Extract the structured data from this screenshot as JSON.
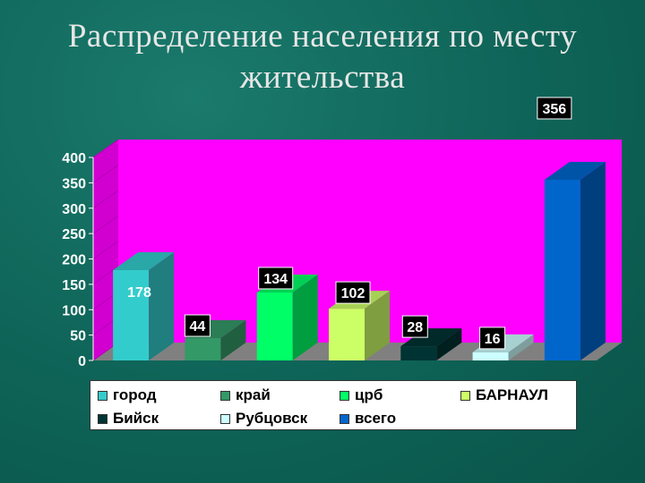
{
  "title": {
    "line1": "Распределение населения по месту",
    "line2": "жительства"
  },
  "chart_data": {
    "type": "bar",
    "categories": [
      "город",
      "край",
      "црб",
      "БАРНАУЛ",
      "Бийск",
      "Рубцовск",
      "всего"
    ],
    "values": [
      178,
      44,
      134,
      102,
      28,
      16,
      356
    ],
    "data_labels": [
      "178",
      "44",
      "134",
      "102",
      "28",
      "16",
      "356"
    ],
    "ylim": [
      0,
      400
    ],
    "yticks": [
      "0",
      "50",
      "100",
      "150",
      "200",
      "250",
      "300",
      "350",
      "400"
    ],
    "grid": false,
    "legend_position": "bottom",
    "three_d": true,
    "colors": {
      "wall": "#ff00ff",
      "floor": "#808080",
      "series": [
        "#33cccc",
        "#339966",
        "#00ff66",
        "#ccff66",
        "#003333",
        "#ccffff",
        "#0066cc"
      ]
    }
  },
  "legend": {
    "items": [
      {
        "label": "город"
      },
      {
        "label": "край"
      },
      {
        "label": "црб"
      },
      {
        "label": "БАРНАУЛ"
      },
      {
        "label": "Бийск"
      },
      {
        "label": "Рубцовск"
      },
      {
        "label": "всего"
      }
    ]
  }
}
